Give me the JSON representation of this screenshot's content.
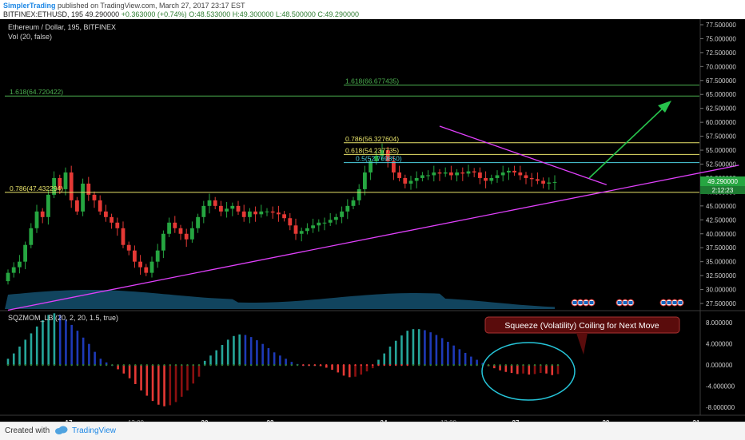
{
  "header": {
    "author": "SimplerTrading",
    "published": "published on TradingView.com, March 27, 2017 23:17 EST",
    "symbol": "BITFINEX:ETHUSD, 195",
    "last": "49.290000",
    "change": "+0.363000 (+0.74%)",
    "open_label": "O:",
    "open": "48.533000",
    "high_label": "H:",
    "high": "49.300000",
    "low_label": "L:",
    "low": "48.500000",
    "close_label": "C:",
    "close": "49.290000"
  },
  "main_pane": {
    "title": "Ethereum / Dollar, 195, BITFINEX",
    "volume_label": "Vol (20, false)",
    "price_badge": "49.290000",
    "countdown": "2:12:23",
    "fib_labels": [
      "1.618(64.720422)",
      "1.618(66.677435)",
      "0.786(56.327604)",
      "0.618(54.237735)",
      "0.5(52.769850)",
      "0.786(47.432294)"
    ]
  },
  "indicator_pane": {
    "title": "SQZMOM_LB (20, 2, 20, 1.5, true)",
    "callout": "Squeeze (Volatility) Coiling for Next Move"
  },
  "footer": {
    "created": "Created with",
    "brand": "TradingView"
  },
  "colors": {
    "background": "#000000",
    "up": "#26a641",
    "down": "#e53935",
    "fib": "#e8e36a",
    "fib_ext": "#4caf50",
    "trendline": "#e040fb",
    "arrow": "#27c24c",
    "ellipse": "#26c6da"
  },
  "chart_data": [
    {
      "type": "candlestick",
      "title": "Ethereum / Dollar, 195, BITFINEX",
      "x_ticks": [
        "17",
        "13:00",
        "20",
        "22",
        "24",
        "13:00",
        "27",
        "29",
        "31"
      ],
      "y_ticks": [
        77.5,
        75,
        72.5,
        70,
        67.5,
        65,
        62.5,
        60,
        57.5,
        55,
        52.5,
        50,
        47.5,
        45,
        42.5,
        40,
        37.5,
        35,
        32.5,
        30,
        27.5
      ],
      "ylim": [
        26.5,
        78.5
      ],
      "close": [
        33,
        34,
        35,
        38,
        41,
        44,
        43,
        47,
        50,
        48,
        51,
        46,
        44,
        49,
        47,
        46,
        44,
        43,
        42,
        41,
        38,
        37,
        35,
        34,
        33,
        35,
        37,
        40,
        42,
        41,
        40,
        39,
        41,
        43,
        45,
        46,
        45,
        44,
        44.5,
        45,
        44,
        43,
        44,
        43.5,
        44,
        44,
        43.8,
        43.5,
        42.8,
        41.5,
        40,
        40.5,
        41,
        41.5,
        42,
        42,
        42.5,
        43,
        44,
        45,
        46,
        48,
        51,
        53,
        54,
        55,
        53,
        51,
        50,
        49,
        49.5,
        50,
        50.5,
        50.5,
        51,
        50.8,
        51,
        50.5,
        51,
        50.8,
        51.2,
        51,
        50,
        49.5,
        50,
        50.5,
        51,
        51.3,
        51,
        50.5,
        50,
        49.8,
        49.5,
        49,
        49.2,
        49.29
      ],
      "trendlines": [
        {
          "label": "rising support",
          "points": [
            [
              0,
              26.3
            ],
            [
              127,
              52.3
            ]
          ]
        },
        {
          "label": "falling resistance",
          "points": [
            [
              75,
              59.3
            ],
            [
              104,
              48.8
            ]
          ]
        }
      ],
      "fib_levels": [
        {
          "label": "1.618(64.720422)",
          "value": 64.720422
        },
        {
          "label": "1.618(66.677435)",
          "value": 66.677435
        },
        {
          "label": "0.786(56.327604)",
          "value": 56.327604
        },
        {
          "label": "0.618(54.237735)",
          "value": 54.237735
        },
        {
          "label": "0.5(52.769850)",
          "value": 52.76985
        },
        {
          "label": "0.786(47.432294)",
          "value": 47.432294
        }
      ]
    },
    {
      "type": "bar",
      "title": "SQZMOM_LB (20, 2, 20, 1.5, true)",
      "y_ticks": [
        8,
        4,
        0,
        -4,
        -8
      ],
      "ylim": [
        -9.5,
        10
      ],
      "values": [
        1.2,
        2.2,
        3.5,
        4.8,
        6,
        7.3,
        8.5,
        9.5,
        9.8,
        9.5,
        8.6,
        7.6,
        6.5,
        5.2,
        4,
        2.5,
        1.2,
        0.5,
        0,
        -0.8,
        -1.6,
        -2.5,
        -3.6,
        -4.8,
        -5.8,
        -6.8,
        -7.5,
        -7.8,
        -7.6,
        -7,
        -6,
        -4.8,
        -3.5,
        -2.2,
        0.8,
        1.8,
        2.8,
        3.8,
        4.8,
        5.5,
        5.8,
        5.7,
        5.3,
        4.7,
        4,
        3.2,
        2.4,
        1.8,
        1.2,
        0.6,
        0.2,
        0,
        0,
        0,
        -0.2,
        -0.5,
        -0.9,
        -1.4,
        -2,
        -2.3,
        -2.2,
        -1.8,
        -1.2,
        -0.6,
        1,
        2.2,
        3.5,
        4.6,
        5.6,
        6.5,
        6.8,
        6.8,
        6.6,
        6.2,
        5.7,
        5.1,
        4.4,
        3.7,
        3,
        2.3,
        1.6,
        1,
        0.4,
        -0.2,
        -0.6,
        -1,
        -1.3,
        -1.5,
        -1.7,
        -1.6,
        -1.8,
        -1.7,
        -1.5,
        -1.6,
        -1.9,
        -1.7
      ]
    }
  ]
}
